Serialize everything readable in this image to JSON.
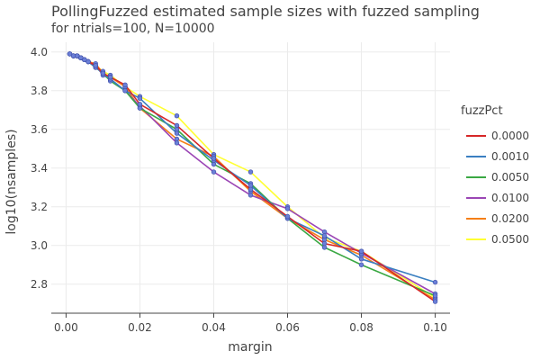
{
  "chart_data": {
    "type": "line",
    "title": "PollingFuzzed estimated sample sizes with fuzzed sampling",
    "subtitle": "for ntrials=100, N=10000",
    "xlabel": "margin",
    "ylabel": "log10(nsamples)",
    "xlim": [
      -0.004,
      0.104
    ],
    "ylim": [
      2.65,
      4.05
    ],
    "x_ticks": [
      0.0,
      0.02,
      0.04,
      0.06,
      0.08,
      0.1
    ],
    "x_tick_labels": [
      "0.00",
      "0.02",
      "0.04",
      "0.06",
      "0.08",
      "0.10"
    ],
    "y_ticks": [
      2.8,
      3.0,
      3.2,
      3.4,
      3.6,
      3.8,
      4.0
    ],
    "y_tick_labels": [
      "2.8",
      "3.0",
      "3.2",
      "3.4",
      "3.6",
      "3.8",
      "4.0"
    ],
    "grid": true,
    "legend_title": "fuzzPct",
    "legend_position": "right",
    "marker_color": "#6b7fd7",
    "x": [
      0.001,
      0.002,
      0.003,
      0.004,
      0.005,
      0.006,
      0.008,
      0.01,
      0.012,
      0.016,
      0.02,
      0.03,
      0.04,
      0.05,
      0.06,
      0.07,
      0.08,
      0.1
    ],
    "series": [
      {
        "name": "0.0000",
        "color": "#d62728",
        "values": [
          3.99,
          3.98,
          3.98,
          3.97,
          3.96,
          3.95,
          3.93,
          3.89,
          3.87,
          3.83,
          3.73,
          3.62,
          3.45,
          3.29,
          3.15,
          3.01,
          2.97,
          2.71
        ]
      },
      {
        "name": "0.0010",
        "color": "#3a7fc1",
        "values": [
          3.99,
          3.98,
          3.98,
          3.97,
          3.96,
          3.95,
          3.92,
          3.89,
          3.86,
          3.8,
          3.76,
          3.58,
          3.44,
          3.31,
          3.14,
          3.05,
          2.93,
          2.81
        ]
      },
      {
        "name": "0.0050",
        "color": "#3aa843",
        "values": [
          3.99,
          3.98,
          3.98,
          3.97,
          3.96,
          3.95,
          3.92,
          3.89,
          3.85,
          3.8,
          3.71,
          3.6,
          3.42,
          3.32,
          3.14,
          2.99,
          2.9,
          2.74
        ]
      },
      {
        "name": "0.0100",
        "color": "#9b46b5",
        "values": [
          3.99,
          3.98,
          3.98,
          3.97,
          3.96,
          3.95,
          3.93,
          3.88,
          3.86,
          3.8,
          3.72,
          3.53,
          3.38,
          3.26,
          3.19,
          3.07,
          2.96,
          2.75
        ]
      },
      {
        "name": "0.0200",
        "color": "#f57f17",
        "values": [
          3.99,
          3.98,
          3.98,
          3.97,
          3.96,
          3.95,
          3.94,
          3.89,
          3.87,
          3.82,
          3.71,
          3.55,
          3.46,
          3.28,
          3.14,
          3.03,
          2.95,
          2.72
        ]
      },
      {
        "name": "0.0500",
        "color": "#ffff33",
        "values": [
          3.99,
          3.98,
          3.98,
          3.97,
          3.96,
          3.95,
          3.93,
          3.9,
          3.88,
          3.82,
          3.77,
          3.67,
          3.47,
          3.38,
          3.2,
          3.04,
          2.97,
          2.73
        ]
      }
    ]
  }
}
